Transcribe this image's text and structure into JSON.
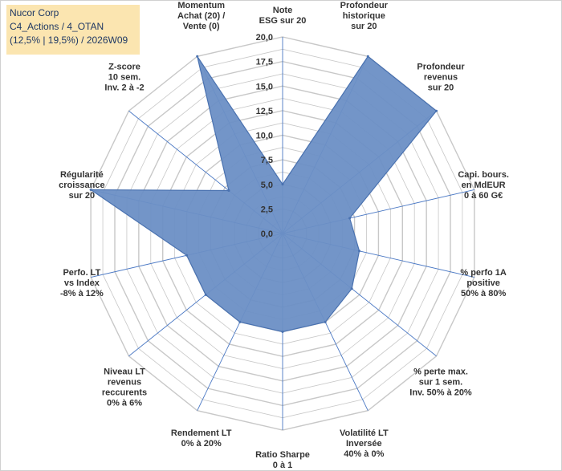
{
  "header": {
    "line1": "Nucor Corp",
    "line2": "C4_Actions / 4_OTAN",
    "line3": "(12,5% | 19,5%) / 2026W09"
  },
  "chart_data": {
    "type": "radar",
    "title": "Nucor Corp",
    "range": [
      0,
      20
    ],
    "tick_values": [
      0,
      2.5,
      5,
      7.5,
      10,
      12.5,
      15,
      17.5,
      20
    ],
    "tick_labels": [
      "0,0",
      "2,5",
      "5,0",
      "7,5",
      "10,0",
      "12,5",
      "15,0",
      "17,5",
      "20,0"
    ],
    "axes": [
      {
        "label": [
          "Note",
          "ESG sur 20"
        ],
        "value": 5
      },
      {
        "label": [
          "Profondeur",
          "historique",
          "sur 20"
        ],
        "value": 20
      },
      {
        "label": [
          "Profondeur",
          "revenus",
          "sur 20"
        ],
        "value": 20
      },
      {
        "label": [
          "Capi. bours.",
          "en MdEUR",
          "0 à 60 G€"
        ],
        "value": 7
      },
      {
        "label": [
          "% perfo 1A",
          "positive",
          "50% à 80%"
        ],
        "value": 8
      },
      {
        "label": [
          "% perte max.",
          "sur 1 sem.",
          "Inv. 50% à 20%"
        ],
        "value": 9
      },
      {
        "label": [
          "Volatilité LT",
          "Inversée",
          "40% à 0%"
        ],
        "value": 10
      },
      {
        "label": [
          "Ratio Sharpe",
          "0 à 1"
        ],
        "value": 10
      },
      {
        "label": [
          "Rendement LT",
          "0% à 20%"
        ],
        "value": 10
      },
      {
        "label": [
          "Niveau LT",
          "revenus",
          "reccurents",
          "0% à 6%"
        ],
        "value": 10
      },
      {
        "label": [
          "Perfo. LT",
          "vs Index",
          "-8% à 12%"
        ],
        "value": 10
      },
      {
        "label": [
          "Régularité",
          "croissance",
          "sur 20"
        ],
        "value": 20
      },
      {
        "label": [
          "Z-score",
          "10 sem.",
          "Inv. 2 à -2"
        ],
        "value": 7
      },
      {
        "label": [
          "Momentum",
          "Achat (20) /",
          "Vente (0)"
        ],
        "value": 20
      }
    ],
    "series_color": "#6b8fc5",
    "series_stroke": "#4a72b0",
    "grid_color": "#c8c8c8",
    "spoke_color": "#4a78c4"
  }
}
